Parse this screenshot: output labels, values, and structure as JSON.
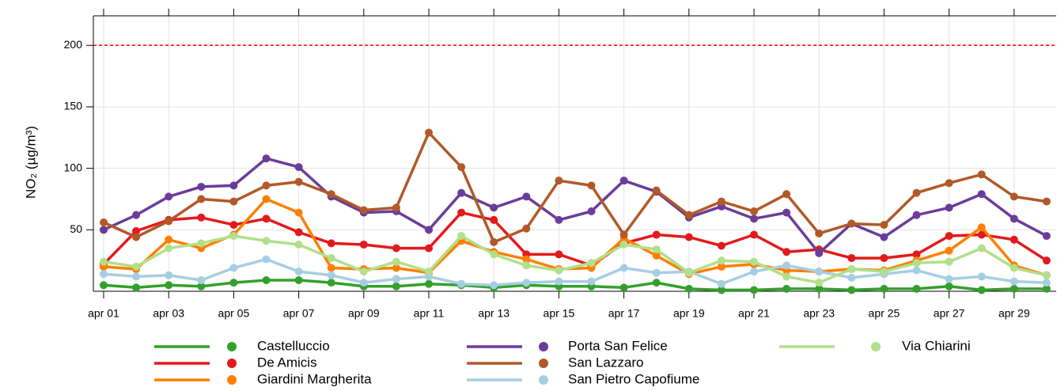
{
  "chart_data": {
    "type": "line",
    "y_label": "NO₂ (µg/m³)",
    "categories": [
      "apr 01",
      null,
      "apr 03",
      null,
      "apr 05",
      null,
      "apr 07",
      null,
      "apr 09",
      null,
      "apr 11",
      null,
      "apr 13",
      null,
      "apr 15",
      null,
      "apr 17",
      null,
      "apr 19",
      null,
      "apr 21",
      null,
      "apr 23",
      null,
      "apr 25",
      null,
      "apr 27",
      null,
      "apr 29",
      null
    ],
    "series": [
      {
        "name": "Castelluccio",
        "color": "#33a02c",
        "values": [
          5,
          3,
          5,
          4,
          7,
          9,
          9,
          7,
          4,
          4,
          6,
          5,
          3,
          5,
          4,
          4,
          3,
          7,
          2,
          1,
          1,
          2,
          2,
          1,
          2,
          2,
          4,
          1,
          2,
          2
        ]
      },
      {
        "name": "De Amicis",
        "color": "#e31a1c",
        "values": [
          22,
          49,
          58,
          60,
          54,
          59,
          48,
          39,
          38,
          35,
          35,
          64,
          58,
          30,
          30,
          21,
          39,
          46,
          44,
          37,
          46,
          32,
          34,
          27,
          27,
          30,
          45,
          46,
          42,
          25
        ]
      },
      {
        "name": "Giardini Margherita",
        "color": "#ff7f00",
        "values": [
          20,
          18,
          42,
          35,
          46,
          75,
          64,
          19,
          18,
          19,
          15,
          41,
          32,
          26,
          18,
          19,
          43,
          29,
          14,
          20,
          22,
          17,
          16,
          18,
          17,
          25,
          33,
          52,
          21,
          13
        ]
      },
      {
        "name": "Porta San Felice",
        "color": "#6a3d9a",
        "values": [
          50,
          62,
          77,
          85,
          86,
          108,
          101,
          77,
          64,
          65,
          50,
          80,
          68,
          77,
          58,
          65,
          90,
          81,
          60,
          69,
          59,
          64,
          31,
          55,
          44,
          62,
          68,
          79,
          59,
          45
        ]
      },
      {
        "name": "San Lazzaro",
        "color": "#b15928",
        "values": [
          56,
          44,
          57,
          75,
          73,
          86,
          89,
          79,
          66,
          68,
          129,
          101,
          40,
          51,
          90,
          86,
          46,
          82,
          62,
          73,
          65,
          79,
          47,
          55,
          54,
          80,
          88,
          95,
          77,
          73
        ]
      },
      {
        "name": "San Pietro Capofiume",
        "color": "#a6cee3",
        "values": [
          14,
          12,
          13,
          9,
          19,
          26,
          16,
          13,
          7,
          10,
          12,
          6,
          5,
          7,
          8,
          8,
          19,
          15,
          16,
          6,
          16,
          21,
          16,
          11,
          14,
          17,
          10,
          12,
          8,
          7
        ]
      },
      {
        "name": "Via Chiarini",
        "color": "#b2df8a",
        "values": [
          24,
          20,
          35,
          39,
          45,
          41,
          38,
          27,
          16,
          24,
          16,
          45,
          30,
          21,
          17,
          23,
          38,
          34,
          15,
          25,
          24,
          12,
          7,
          18,
          16,
          23,
          24,
          35,
          19,
          13
        ]
      }
    ],
    "ylim": [
      0,
      224
    ],
    "yticks": [
      50,
      100,
      150,
      200
    ],
    "grid": true,
    "threshold": 200,
    "threshold_color": "#ff0000",
    "legend": "bottom"
  }
}
